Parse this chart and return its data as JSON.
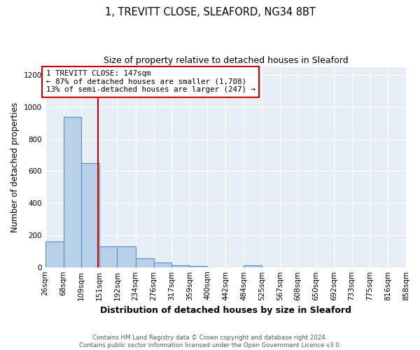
{
  "title": "1, TREVITT CLOSE, SLEAFORD, NG34 8BT",
  "subtitle": "Size of property relative to detached houses in Sleaford",
  "xlabel": "Distribution of detached houses by size in Sleaford",
  "ylabel": "Number of detached properties",
  "bin_edges": [
    26,
    68,
    109,
    151,
    192,
    234,
    276,
    317,
    359,
    400,
    442,
    484,
    525,
    567,
    608,
    650,
    692,
    733,
    775,
    816,
    858
  ],
  "bar_heights": [
    160,
    940,
    650,
    130,
    130,
    55,
    30,
    13,
    8,
    0,
    0,
    13,
    0,
    0,
    0,
    0,
    0,
    0,
    0,
    0
  ],
  "bar_color": "#b8d0e8",
  "bar_edgecolor": "#5591c4",
  "red_line_x": 147,
  "annotation_line1": "1 TREVITT CLOSE: 147sqm",
  "annotation_line2": "← 87% of detached houses are smaller (1,708)",
  "annotation_line3": "13% of semi-detached houses are larger (247) →",
  "annotation_box_color": "white",
  "annotation_box_edgecolor": "#cc0000",
  "red_line_color": "#cc0000",
  "ylim": [
    0,
    1250
  ],
  "yticks": [
    0,
    200,
    400,
    600,
    800,
    1000,
    1200
  ],
  "footnote": "Contains HM Land Registry data © Crown copyright and database right 2024.\nContains public sector information licensed under the Open Government Licence v3.0.",
  "background_color": "#e8eef5",
  "plot_bg_color": "white",
  "grid_color": "white"
}
